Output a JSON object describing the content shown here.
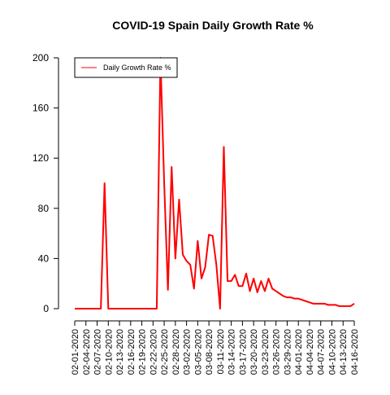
{
  "chart_data": {
    "type": "line",
    "title": "COVID-19 Spain Daily Growth Rate %",
    "xlabel": "",
    "ylabel": "",
    "ylim": [
      0,
      200
    ],
    "yticks": [
      0,
      40,
      80,
      120,
      160,
      200
    ],
    "xtick_labels": [
      "02-01-2020",
      "02-04-2020",
      "02-07-2020",
      "02-10-2020",
      "02-13-2020",
      "02-16-2020",
      "02-19-2020",
      "02-22-2020",
      "02-25-2020",
      "02-28-2020",
      "03-02-2020",
      "03-05-2020",
      "03-08-2020",
      "03-11-2020",
      "03-14-2020",
      "03-17-2020",
      "03-20-2020",
      "03-23-2020",
      "03-26-2020",
      "03-29-2020",
      "04-01-2020",
      "04-04-2020",
      "04-07-2020",
      "04-10-2020",
      "04-13-2020",
      "04-16-2020"
    ],
    "legend_position": "top-left",
    "series": [
      {
        "name": "Daily Growth Rate %",
        "color": "#ff0000",
        "x": [
          "02-01-2020",
          "02-02-2020",
          "02-03-2020",
          "02-04-2020",
          "02-05-2020",
          "02-06-2020",
          "02-07-2020",
          "02-08-2020",
          "02-09-2020",
          "02-10-2020",
          "02-11-2020",
          "02-12-2020",
          "02-13-2020",
          "02-14-2020",
          "02-15-2020",
          "02-16-2020",
          "02-17-2020",
          "02-18-2020",
          "02-19-2020",
          "02-20-2020",
          "02-21-2020",
          "02-22-2020",
          "02-23-2020",
          "02-24-2020",
          "02-25-2020",
          "02-26-2020",
          "02-27-2020",
          "02-28-2020",
          "02-29-2020",
          "03-01-2020",
          "03-02-2020",
          "03-03-2020",
          "03-04-2020",
          "03-05-2020",
          "03-06-2020",
          "03-07-2020",
          "03-08-2020",
          "03-09-2020",
          "03-10-2020",
          "03-11-2020",
          "03-12-2020",
          "03-13-2020",
          "03-14-2020",
          "03-15-2020",
          "03-16-2020",
          "03-17-2020",
          "03-18-2020",
          "03-19-2020",
          "03-20-2020",
          "03-21-2020",
          "03-22-2020",
          "03-23-2020",
          "03-24-2020",
          "03-25-2020",
          "03-26-2020",
          "03-27-2020",
          "03-28-2020",
          "03-29-2020",
          "03-30-2020",
          "03-31-2020",
          "04-01-2020",
          "04-02-2020",
          "04-03-2020",
          "04-04-2020",
          "04-05-2020",
          "04-06-2020",
          "04-07-2020",
          "04-08-2020",
          "04-09-2020",
          "04-10-2020",
          "04-11-2020",
          "04-12-2020",
          "04-13-2020",
          "04-14-2020",
          "04-15-2020",
          "04-16-2020"
        ],
        "values": [
          0,
          0,
          0,
          0,
          0,
          0,
          0,
          0,
          100,
          0,
          0,
          0,
          0,
          0,
          0,
          0,
          0,
          0,
          0,
          0,
          0,
          0,
          0,
          200,
          100,
          15,
          113,
          40,
          87,
          43,
          38,
          35,
          16,
          54,
          24,
          33,
          59,
          58,
          35,
          0,
          129,
          22,
          22,
          27,
          18,
          18,
          28,
          14,
          24,
          13,
          22,
          14,
          24,
          16,
          14,
          12,
          10,
          9,
          9,
          8,
          8,
          7,
          6,
          5,
          4,
          4,
          4,
          4,
          3,
          3,
          3,
          2,
          2,
          2,
          2,
          4
        ]
      }
    ]
  }
}
